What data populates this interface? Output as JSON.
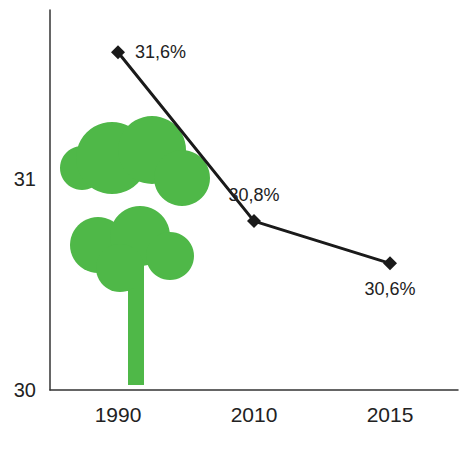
{
  "chart_data": {
    "type": "line",
    "categories": [
      "1990",
      "2010",
      "2015"
    ],
    "values": [
      31.6,
      30.8,
      30.6
    ],
    "value_labels": [
      "31,6%",
      "30,8%",
      "30,6%"
    ],
    "color": "#1a1a1a",
    "marker": "diamond",
    "ylim": [
      30,
      31.8
    ],
    "yticks": [
      30,
      31
    ],
    "grid": false,
    "data_labels": true
  }
}
